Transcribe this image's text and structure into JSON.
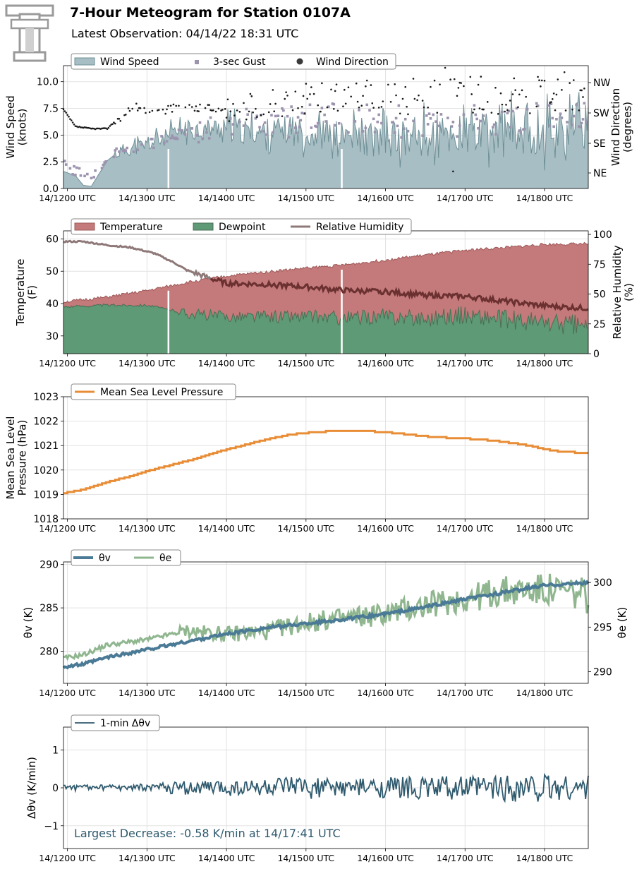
{
  "header": {
    "title": "7-Hour Meteogram for Station 0107A",
    "subtitle": "Latest Observation: 04/14/22 18:31 UTC",
    "logo_letter": "T"
  },
  "time_ticks": [
    "14/1200 UTC",
    "14/1300 UTC",
    "14/1400 UTC",
    "14/1500 UTC",
    "14/1600 UTC",
    "14/1700 UTC",
    "14/1800 UTC"
  ],
  "colors": {
    "wind_fill": "#a7bec4",
    "wind_line": "#6f8f96",
    "gust": "#9c93ae",
    "direction": "#1a1a1a",
    "temp_fill": "#c47a7a",
    "temp_line": "#9e5858",
    "dew_fill": "#5e9a75",
    "dew_line": "#4a6e55",
    "rh": "#8e7878",
    "rh_dark": "#6b3030",
    "pressure": "#e88d36",
    "theta_v": "#4a7a95",
    "theta_e": "#8fb68f",
    "dtheta": "#2f5a6e",
    "annotation": "#2f5a6e",
    "grid": "#e2e2e2"
  },
  "chart_data": [
    {
      "type": "area",
      "panel": "wind",
      "xlabel": "",
      "ylabel": "Wind Speed\n(knots)",
      "ylim": [
        0,
        11.5
      ],
      "yticks": [
        "0.0",
        "2.5",
        "5.0",
        "7.5",
        "10.0"
      ],
      "y2label": "Wind Direction\n(degrees)",
      "y2ticks": [
        "NE",
        "SE",
        "SW",
        "NW"
      ],
      "legend": [
        "Wind Speed",
        "3-sec Gust",
        "Wind Direction"
      ],
      "legend_position": "top-left",
      "grid": true,
      "series": [
        {
          "name": "Wind Speed",
          "x_hours": [
            11.95,
            12.1,
            12.2,
            12.3,
            12.4,
            12.5,
            12.6,
            12.75,
            13.0,
            13.25,
            13.5,
            13.75,
            14.0,
            14.25,
            14.5,
            14.75,
            15.0,
            15.25,
            15.5,
            15.75,
            16.0,
            16.25,
            16.5,
            16.75,
            17.0,
            17.25,
            17.5,
            17.75,
            18.0,
            18.25,
            18.5
          ],
          "values": [
            1.6,
            1.2,
            0.3,
            0.2,
            1.4,
            2.6,
            3.2,
            3.6,
            4.0,
            4.7,
            5.4,
            5.5,
            5.6,
            5.2,
            5.2,
            5.3,
            5.0,
            4.9,
            4.6,
            4.5,
            4.3,
            4.4,
            4.5,
            4.7,
            4.6,
            4.8,
            4.9,
            5.1,
            5.2,
            5.5,
            5.6
          ]
        },
        {
          "name": "3-sec Gust",
          "x_hours": [
            11.95,
            12.3,
            12.6,
            13.0,
            13.5,
            14.0,
            14.5,
            15.0,
            15.5,
            16.0,
            16.5,
            17.0,
            17.5,
            18.0,
            18.5
          ],
          "values": [
            2.3,
            0.8,
            3.3,
            4.0,
            5.3,
            6.4,
            6.1,
            6.4,
            6.7,
            6.3,
            6.2,
            6.3,
            6.6,
            6.8,
            6.9
          ]
        },
        {
          "name": "Wind Direction",
          "x_hours": [
            11.95,
            12.1,
            12.3,
            12.5,
            12.6,
            12.8,
            13.0,
            13.5,
            14.0,
            14.5,
            15.0,
            15.5,
            16.0,
            16.5,
            17.0,
            17.5,
            18.0,
            18.5
          ],
          "values": [
            7.4,
            5.8,
            5.6,
            5.6,
            6.3,
            7.6,
            7.4,
            7.5,
            7.6,
            8.0,
            8.4,
            8.6,
            8.6,
            8.7,
            8.8,
            8.8,
            8.9,
            9.0
          ]
        }
      ]
    },
    {
      "type": "area",
      "panel": "temperature",
      "ylabel": "Temperature\n(F)",
      "ylim": [
        24.5,
        62.5
      ],
      "yticks": [
        "30",
        "40",
        "50",
        "60"
      ],
      "y2label": "Relative Humidity\n(%)",
      "y2lim": [
        0,
        103
      ],
      "y2ticks": [
        "0",
        "25",
        "50",
        "75",
        "100"
      ],
      "legend": [
        "Temperature",
        "Dewpoint",
        "Relative Humidity"
      ],
      "legend_position": "top-left",
      "grid": true,
      "series": [
        {
          "name": "Temperature",
          "x_hours": [
            11.95,
            12.5,
            13.0,
            13.5,
            14.0,
            14.5,
            15.0,
            15.5,
            16.0,
            16.5,
            17.0,
            17.5,
            18.0,
            18.55
          ],
          "values": [
            40.5,
            42.0,
            44.0,
            46.5,
            48.5,
            49.8,
            51.0,
            52.0,
            53.5,
            55.0,
            56.5,
            57.3,
            58.3,
            58.5
          ]
        },
        {
          "name": "Dewpoint",
          "x_hours": [
            11.95,
            12.5,
            13.0,
            13.5,
            14.0,
            14.5,
            15.0,
            15.5,
            16.0,
            16.5,
            17.0,
            17.5,
            18.0,
            18.55
          ],
          "values": [
            39.0,
            39.5,
            39.5,
            37.0,
            36.0,
            36.0,
            36.0,
            35.5,
            36.0,
            35.5,
            36.5,
            35.0,
            34.0,
            33.0
          ]
        },
        {
          "name": "Relative Humidity",
          "x_hours": [
            11.95,
            12.2,
            12.5,
            12.8,
            13.1,
            13.35,
            13.5,
            13.8,
            14.0,
            14.5,
            15.0,
            15.5,
            16.0,
            16.5,
            17.0,
            17.5,
            18.0,
            18.55
          ],
          "values": [
            94,
            94,
            91,
            89,
            84,
            76,
            70,
            63,
            59,
            58,
            56,
            53,
            52,
            49,
            48,
            44,
            40,
            38
          ]
        }
      ]
    },
    {
      "type": "line",
      "panel": "pressure",
      "ylabel": "Mean Sea Level\nPressure (hPa)",
      "ylim": [
        1018,
        1023
      ],
      "yticks": [
        "1018",
        "1019",
        "1020",
        "1021",
        "1022",
        "1023"
      ],
      "legend": [
        "Mean Sea Level Pressure"
      ],
      "legend_position": "top-left",
      "grid": true,
      "series": [
        {
          "name": "Mean Sea Level Pressure",
          "x_hours": [
            11.95,
            12.2,
            12.5,
            12.8,
            13.0,
            13.3,
            13.6,
            13.9,
            14.2,
            14.5,
            14.8,
            15.1,
            15.4,
            15.7,
            16.0,
            16.3,
            16.6,
            16.9,
            17.2,
            17.5,
            17.8,
            18.0,
            18.2,
            18.55
          ],
          "values": [
            1019.05,
            1019.2,
            1019.5,
            1019.75,
            1019.95,
            1020.2,
            1020.45,
            1020.75,
            1021.0,
            1021.25,
            1021.45,
            1021.55,
            1021.6,
            1021.6,
            1021.55,
            1021.45,
            1021.35,
            1021.3,
            1021.25,
            1021.15,
            1021.0,
            1020.85,
            1020.75,
            1020.7
          ]
        }
      ]
    },
    {
      "type": "line",
      "panel": "theta",
      "ylabel": "θv (K)",
      "ylim": [
        276.3,
        290.3
      ],
      "yticks": [
        "280",
        "285",
        "290"
      ],
      "y2label": "θe (K)",
      "y2lim": [
        288.7,
        302.3
      ],
      "y2ticks": [
        "290",
        "295",
        "300"
      ],
      "legend": [
        "θv",
        "θe"
      ],
      "legend_position": "top-left",
      "grid": true,
      "series": [
        {
          "name": "θv",
          "x_hours": [
            11.95,
            12.2,
            12.5,
            13.0,
            13.5,
            14.0,
            14.5,
            15.0,
            15.5,
            16.0,
            16.5,
            17.0,
            17.5,
            18.0,
            18.55
          ],
          "values": [
            278.2,
            278.5,
            279.3,
            280.2,
            281.1,
            282.0,
            282.7,
            283.2,
            283.7,
            284.3,
            285.1,
            286.0,
            286.8,
            287.6,
            287.9
          ]
        },
        {
          "name": "θe",
          "x_hours": [
            11.95,
            12.2,
            12.5,
            13.0,
            13.5,
            14.0,
            14.5,
            15.0,
            15.5,
            16.0,
            16.5,
            17.0,
            17.5,
            18.0,
            18.55
          ],
          "values": [
            291.5,
            291.9,
            293.0,
            293.6,
            294.6,
            294.2,
            294.5,
            295.5,
            296.0,
            296.5,
            297.4,
            298.2,
            299.0,
            299.2,
            298.5
          ]
        }
      ]
    },
    {
      "type": "line",
      "panel": "dtheta",
      "ylabel": "Δθv (K/min)",
      "ylim": [
        -1.6,
        1.6
      ],
      "yticks": [
        "−1",
        "0",
        "1"
      ],
      "legend": [
        "1-min Δθv"
      ],
      "legend_position": "top-left",
      "grid": true,
      "annotation": "Largest Decrease: -0.58 K/min at 14/17:41 UTC",
      "series": [
        {
          "name": "1-min Δθv",
          "x_hours": [
            11.95,
            12.5,
            13.0,
            13.5,
            14.0,
            14.5,
            15.0,
            15.5,
            16.0,
            16.5,
            17.0,
            17.5,
            18.0,
            18.55
          ],
          "amplitude": [
            0.08,
            0.08,
            0.12,
            0.18,
            0.22,
            0.24,
            0.3,
            0.22,
            0.28,
            0.3,
            0.32,
            0.38,
            0.38,
            0.32
          ]
        }
      ]
    }
  ]
}
